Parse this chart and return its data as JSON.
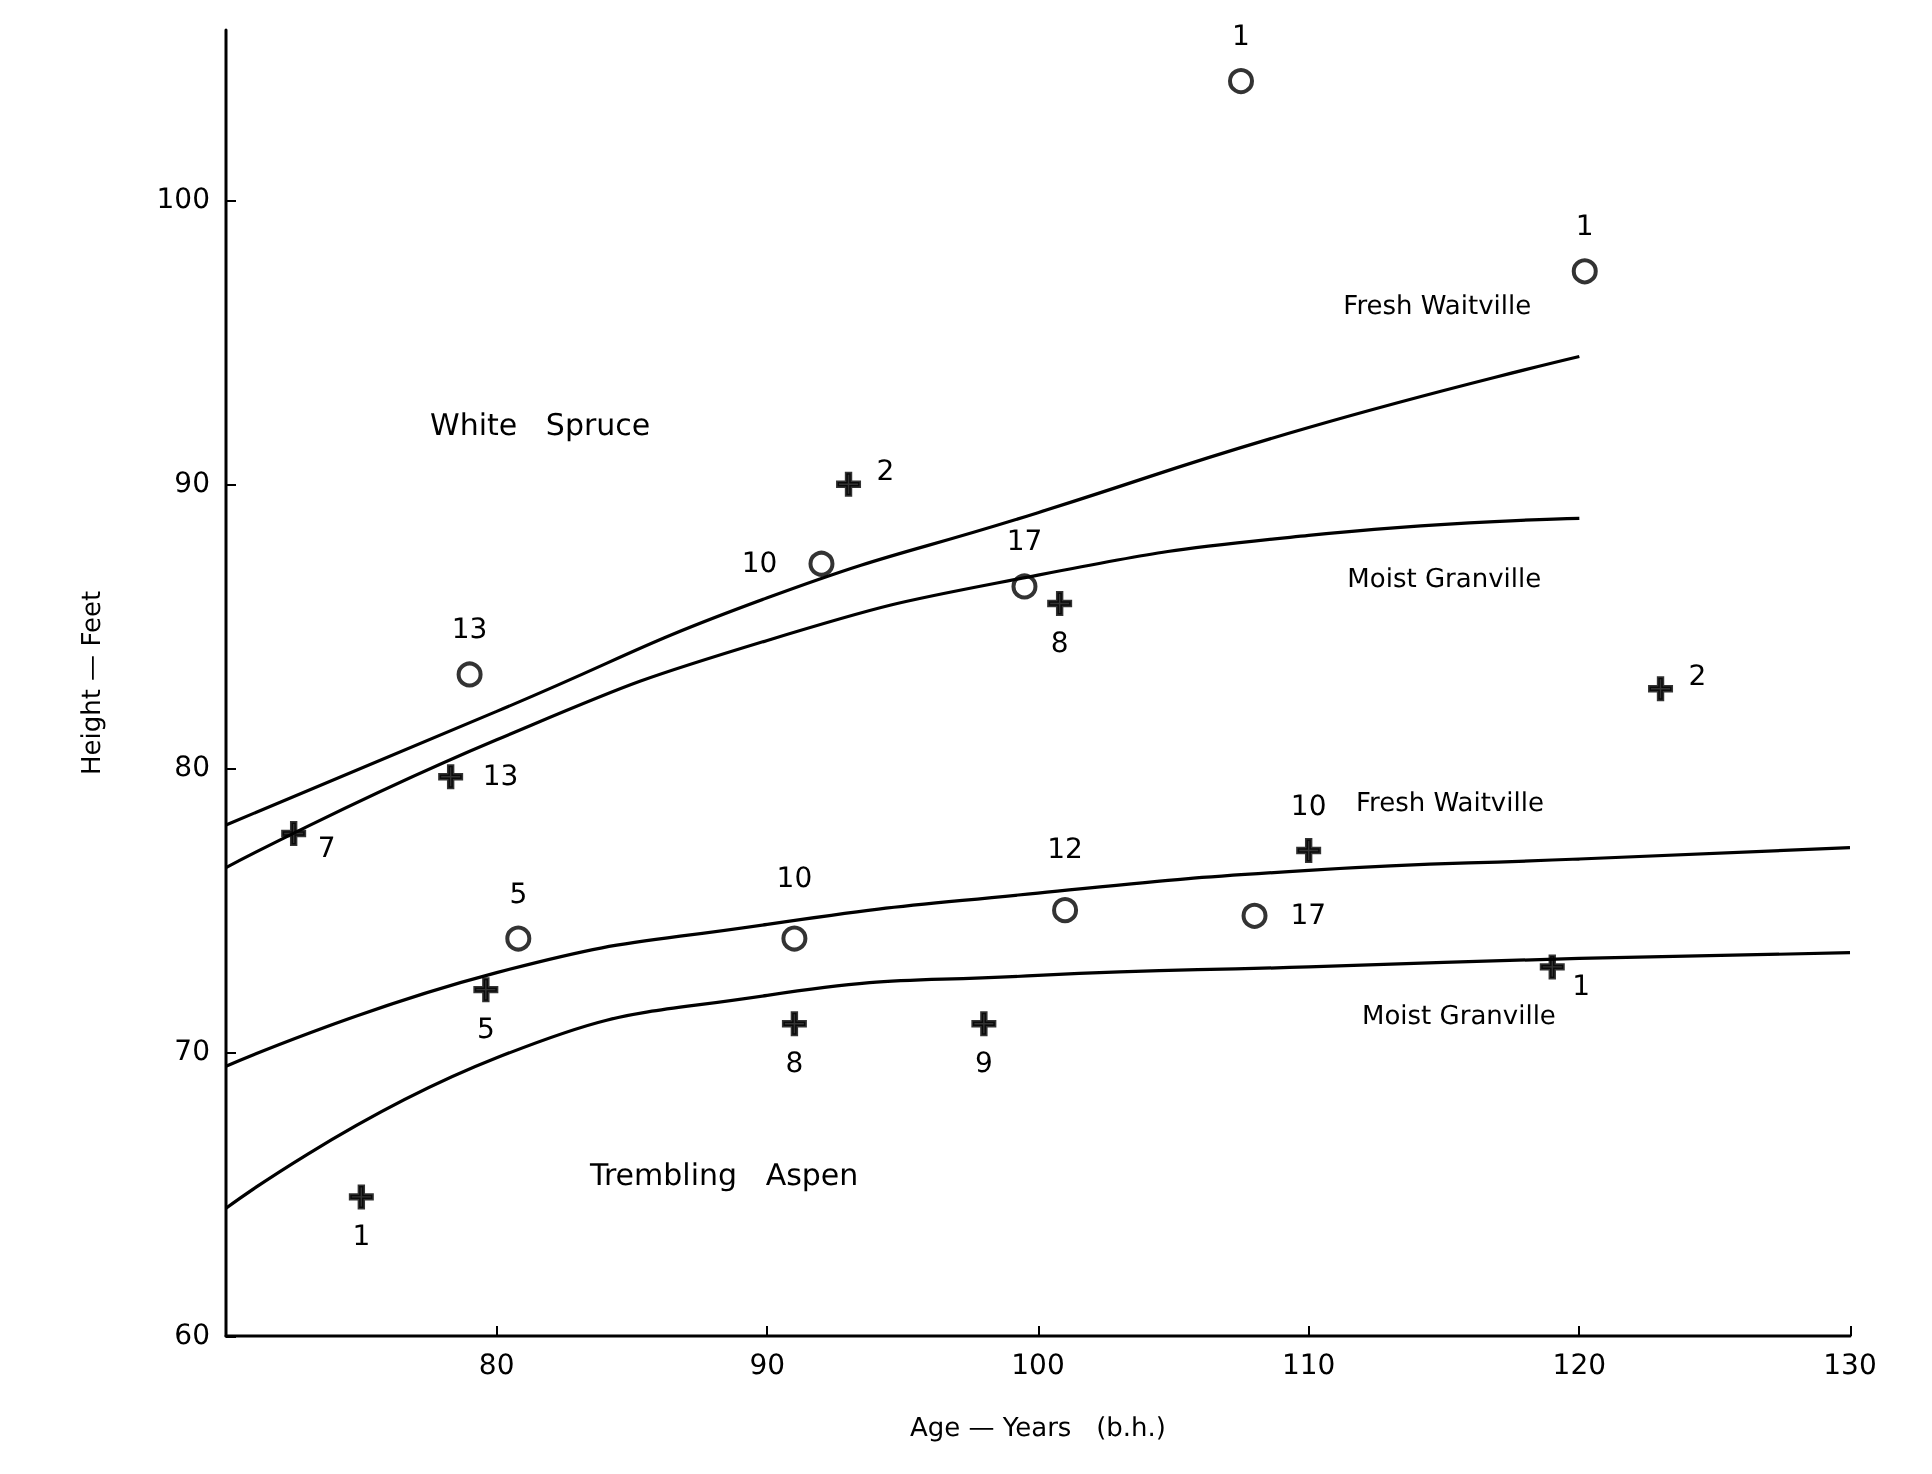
{
  "chart_data": {
    "type": "line",
    "xlabel": "Age — Years   (b.h.)",
    "ylabel": "Height — Feet",
    "xlim": [
      70,
      130
    ],
    "xticks": [
      80,
      90,
      100,
      110,
      120,
      130
    ],
    "ylim": [
      60,
      106
    ],
    "yticks": [
      60,
      70,
      80,
      90,
      100
    ],
    "grid": false,
    "legend": false,
    "line_style": "solid",
    "annotations": [
      "White   Spruce",
      "Trembling   Aspen",
      {
        "text": "1",
        "x": 107.5,
        "y": 104.2
      },
      {
        "text": "1",
        "x": 120.2,
        "y": 97.5
      },
      {
        "text": "13",
        "x": 79,
        "y": 83.3
      },
      {
        "text": "10",
        "x": 92,
        "y": 87.2
      },
      {
        "text": "17",
        "x": 99.5,
        "y": 86.4
      },
      {
        "text": "5",
        "x": 80.8,
        "y": 74.0
      },
      {
        "text": "10",
        "x": 91,
        "y": 74.0
      },
      {
        "text": "12",
        "x": 101,
        "y": 75.0
      },
      {
        "text": "17",
        "x": 108,
        "y": 74.8
      },
      {
        "text": "2",
        "x": 93,
        "y": 90.0
      },
      {
        "text": "8",
        "x": 100.8,
        "y": 85.8
      },
      {
        "text": "2",
        "x": 123,
        "y": 82.8
      },
      {
        "text": "13",
        "x": 78.3,
        "y": 79.7
      },
      {
        "text": "7",
        "x": 72.5,
        "y": 77.7
      },
      {
        "text": "10",
        "x": 110,
        "y": 77.1
      },
      {
        "text": "5",
        "x": 79.6,
        "y": 72.2
      },
      {
        "text": "8",
        "x": 91,
        "y": 71.0
      },
      {
        "text": "9",
        "x": 98,
        "y": 71.0
      },
      {
        "text": "1",
        "x": 119,
        "y": 73.0
      },
      {
        "text": "1",
        "x": 75,
        "y": 64.9
      }
    ],
    "series": [
      {
        "name": "Fresh Waitville",
        "color": "#000000",
        "marker": "none",
        "x": [
          70,
          80,
          90,
          100,
          110,
          120
        ],
        "values": [
          78.0,
          82.0,
          86.0,
          89.0,
          92.0,
          94.5
        ]
      },
      {
        "name": "Moist Granville",
        "color": "#000000",
        "marker": "none",
        "x": [
          70,
          80,
          90,
          100,
          110,
          120
        ],
        "values": [
          76.5,
          81.0,
          84.5,
          86.8,
          88.2,
          88.8
        ]
      },
      {
        "name": "Fresh Waitville",
        "color": "#000000",
        "marker": "none",
        "x": [
          70,
          80,
          90,
          100,
          110,
          120,
          130
        ],
        "values": [
          69.5,
          72.8,
          74.5,
          75.6,
          76.4,
          76.8,
          77.2
        ]
      },
      {
        "name": "Moist Granville",
        "color": "#000000",
        "marker": "none",
        "x": [
          70,
          80,
          90,
          100,
          110,
          120,
          130
        ],
        "values": [
          64.5,
          69.8,
          72.0,
          72.7,
          73.0,
          73.3,
          73.5
        ]
      },
      {
        "type": "scatter",
        "color": "#000000",
        "marker": "circle",
        "x": [
          107.5,
          120.2,
          79,
          92,
          99.5,
          80.8,
          91,
          101,
          108
        ],
        "values": [
          104.2,
          97.5,
          83.3,
          87.2,
          86.4,
          74.0,
          74.0,
          75.0,
          74.8
        ]
      },
      {
        "type": "scatter",
        "color": "#000000",
        "marker": "cross",
        "x": [
          93,
          100.8,
          123,
          78.3,
          72.5,
          110,
          79.6,
          91,
          98,
          119,
          75
        ],
        "values": [
          90.0,
          85.8,
          82.8,
          79.7,
          77.7,
          77.1,
          72.2,
          71.0,
          71.0,
          73.0,
          64.9
        ]
      }
    ]
  }
}
